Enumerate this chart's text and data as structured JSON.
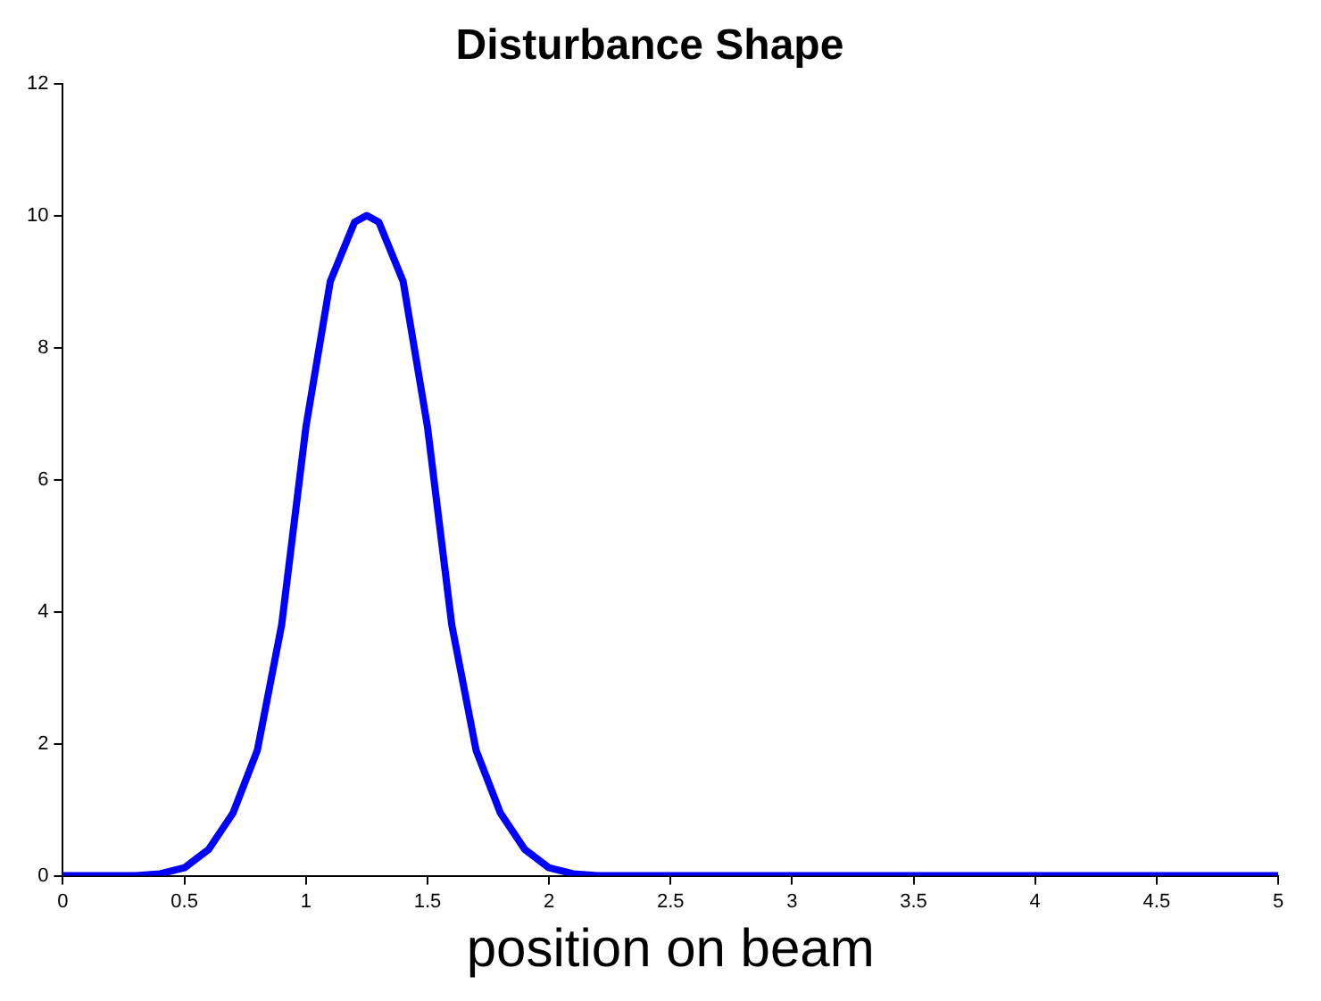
{
  "chart_data": {
    "type": "line",
    "title": "Disturbance Shape",
    "xlabel": "position on beam",
    "x": [
      0,
      0.3,
      0.4,
      0.5,
      0.6,
      0.7,
      0.8,
      0.9,
      1.0,
      1.1,
      1.2,
      1.25,
      1.3,
      1.4,
      1.5,
      1.6,
      1.7,
      1.8,
      1.9,
      2.0,
      2.1,
      2.2,
      2.5,
      5
    ],
    "series": [
      {
        "color": "#0000ff",
        "values": [
          0,
          0,
          0.03,
          0.12,
          0.4,
          0.95,
          1.9,
          3.8,
          6.8,
          9.0,
          9.9,
          10,
          9.9,
          9.0,
          6.8,
          3.8,
          1.9,
          0.95,
          0.4,
          0.12,
          0.03,
          0,
          0,
          0
        ]
      }
    ],
    "xlim": [
      0,
      5
    ],
    "xticks": [
      0,
      0.5,
      1,
      1.5,
      2,
      2.5,
      3,
      3.5,
      4,
      4.5,
      5
    ],
    "ylim": [
      0,
      12
    ],
    "yticks": [
      0,
      2,
      4,
      6,
      8,
      10,
      12
    ],
    "grid": false,
    "legend": false,
    "marker": "none",
    "line_style": "solid"
  }
}
